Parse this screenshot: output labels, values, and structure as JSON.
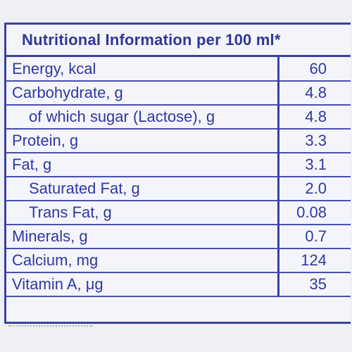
{
  "title": "Nutritional Information per 100 ml*",
  "rows": [
    {
      "name": "Energy, kcal",
      "value": "60",
      "indent": false
    },
    {
      "name": "Carbohydrate, g",
      "value": "4.8",
      "indent": false
    },
    {
      "name": "of which sugar (Lactose), g",
      "value": "4.8",
      "indent": true
    },
    {
      "name": "Protein, g",
      "value": "3.3",
      "indent": false
    },
    {
      "name": "Fat, g",
      "value": "3.1",
      "indent": false
    },
    {
      "name": "Saturated Fat, g",
      "value": "2.0",
      "indent": true
    },
    {
      "name": "Trans Fat, g",
      "value": "0.08",
      "indent": true
    },
    {
      "name": "Minerals, g",
      "value": "0.7",
      "indent": false
    },
    {
      "name": "Calcium, mg",
      "value": "124",
      "indent": false
    },
    {
      "name": "Vitamin A, μg",
      "value": "35",
      "indent": false
    }
  ],
  "colors": {
    "text": "#3038a0",
    "border": "#3a42a0",
    "background": "#f4f5fa"
  }
}
